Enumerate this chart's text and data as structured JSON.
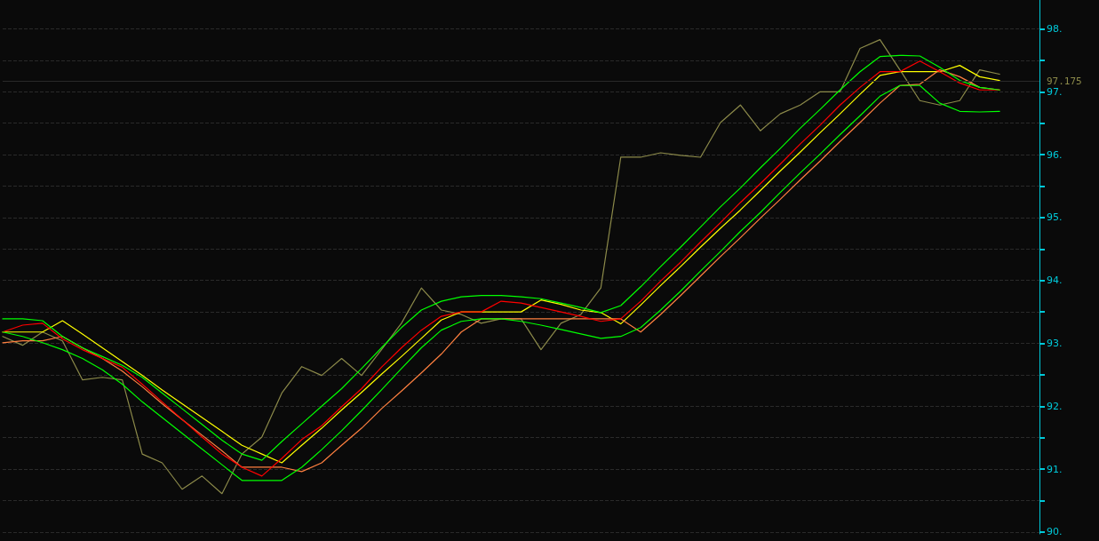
{
  "chart_data": {
    "type": "line",
    "categories": [
      null,
      null,
      null,
      null,
      null,
      null,
      null,
      null,
      null,
      null,
      null,
      null,
      null,
      null,
      null,
      null,
      null,
      null,
      null,
      null,
      null,
      null,
      null,
      null,
      null,
      null,
      null,
      null,
      null,
      null,
      null,
      null,
      null,
      null,
      null,
      null,
      null,
      null,
      null,
      null,
      null,
      null,
      null,
      null,
      null,
      null,
      null,
      null,
      null,
      null,
      null,
      null,
      null
    ],
    "series": [
      {
        "color": "#8c8a4a",
        "values": [
          93.11,
          92.97,
          93.18,
          93.04,
          92.42,
          92.46,
          92.42,
          91.24,
          91.1,
          90.68,
          90.89,
          90.61,
          91.24,
          91.51,
          92.21,
          92.63,
          92.49,
          92.76,
          92.49,
          92.9,
          93.32,
          93.88,
          93.53,
          93.46,
          93.32,
          93.39,
          93.39,
          92.9,
          93.32,
          93.46,
          93.88,
          95.96,
          95.96,
          96.03,
          95.99,
          95.96,
          96.51,
          96.79,
          96.38,
          96.65,
          96.79,
          97.0,
          97.0,
          97.69,
          97.83,
          97.35,
          96.86,
          96.79,
          96.86,
          97.35,
          97.28,
          null,
          null
        ]
      },
      {
        "color": "#ffff00",
        "values": [
          93.18,
          93.18,
          93.18,
          93.36,
          93.15,
          92.93,
          92.71,
          92.49,
          92.26,
          92.04,
          91.82,
          91.6,
          91.38,
          91.24,
          91.1,
          91.38,
          91.65,
          91.94,
          92.22,
          92.51,
          92.79,
          93.08,
          93.37,
          93.5,
          93.5,
          93.5,
          93.5,
          93.69,
          93.62,
          93.53,
          93.49,
          93.31,
          93.61,
          93.92,
          94.22,
          94.53,
          94.83,
          95.12,
          95.43,
          95.74,
          96.04,
          96.35,
          96.65,
          96.96,
          97.26,
          97.32,
          97.32,
          97.32,
          97.42,
          97.24,
          97.18,
          null,
          null
        ]
      },
      {
        "color": "#ff8040",
        "values": [
          93.01,
          93.04,
          93.04,
          93.11,
          92.93,
          92.76,
          92.56,
          92.31,
          92.04,
          91.79,
          91.54,
          91.29,
          91.03,
          91.03,
          91.03,
          90.96,
          91.1,
          91.38,
          91.65,
          91.96,
          92.24,
          92.53,
          92.83,
          93.18,
          93.39,
          93.39,
          93.39,
          93.39,
          93.39,
          93.39,
          93.39,
          93.39,
          93.18,
          93.46,
          93.76,
          94.07,
          94.38,
          94.68,
          94.99,
          95.29,
          95.6,
          95.9,
          96.21,
          96.51,
          96.82,
          97.1,
          97.12,
          97.35,
          97.24,
          97.07,
          97.03,
          null,
          null
        ]
      },
      {
        "color": "#ff0000",
        "values": [
          93.18,
          93.29,
          93.32,
          93.07,
          92.9,
          92.76,
          92.62,
          92.35,
          92.07,
          91.79,
          91.51,
          91.24,
          91.03,
          90.89,
          91.17,
          91.47,
          91.69,
          91.99,
          92.28,
          92.62,
          92.93,
          93.21,
          93.43,
          93.5,
          93.5,
          93.67,
          93.64,
          93.57,
          93.5,
          93.43,
          93.35,
          93.39,
          93.67,
          93.99,
          94.29,
          94.61,
          94.92,
          95.24,
          95.54,
          95.85,
          96.17,
          96.47,
          96.79,
          97.07,
          97.32,
          97.32,
          97.49,
          97.32,
          97.14,
          97.03,
          97.03,
          null,
          null
        ]
      },
      {
        "color": "#00ff00",
        "values": [
          93.39,
          93.39,
          93.36,
          93.11,
          92.93,
          92.79,
          92.65,
          92.46,
          92.21,
          91.96,
          91.71,
          91.46,
          91.24,
          91.14,
          91.44,
          91.72,
          92.0,
          92.28,
          92.6,
          92.93,
          93.25,
          93.53,
          93.67,
          93.74,
          93.76,
          93.76,
          93.74,
          93.71,
          93.64,
          93.57,
          93.49,
          93.6,
          93.9,
          94.22,
          94.53,
          94.85,
          95.17,
          95.47,
          95.79,
          96.1,
          96.42,
          96.72,
          97.03,
          97.32,
          97.56,
          97.58,
          97.57,
          97.39,
          97.18,
          97.07,
          97.03,
          null,
          null
        ]
      },
      {
        "color": "#00ff00",
        "values": [
          93.18,
          93.11,
          93.01,
          92.9,
          92.76,
          92.58,
          92.35,
          92.07,
          91.82,
          91.57,
          91.32,
          91.07,
          90.82,
          90.82,
          90.82,
          91.03,
          91.31,
          91.61,
          91.93,
          92.26,
          92.6,
          92.93,
          93.21,
          93.35,
          93.39,
          93.39,
          93.35,
          93.29,
          93.22,
          93.15,
          93.08,
          93.11,
          93.25,
          93.53,
          93.83,
          94.15,
          94.46,
          94.78,
          95.08,
          95.4,
          95.71,
          96.01,
          96.32,
          96.62,
          96.93,
          97.1,
          97.1,
          96.82,
          96.69,
          96.68,
          96.69,
          null,
          null
        ]
      }
    ],
    "ylim": [
      89.97,
      98.46
    ],
    "yticks": [
      {
        "value": 90,
        "label": "90."
      },
      {
        "value": 90.5,
        "label": null
      },
      {
        "value": 91,
        "label": "91."
      },
      {
        "value": 91.5,
        "label": null
      },
      {
        "value": 92,
        "label": "92."
      },
      {
        "value": 92.5,
        "label": null
      },
      {
        "value": 93,
        "label": "93."
      },
      {
        "value": 93.5,
        "label": null
      },
      {
        "value": 94,
        "label": "94."
      },
      {
        "value": 94.5,
        "label": null
      },
      {
        "value": 95,
        "label": "95."
      },
      {
        "value": 95.5,
        "label": null
      },
      {
        "value": 96,
        "label": "96."
      },
      {
        "value": 96.5,
        "label": null
      },
      {
        "value": 97,
        "label": "97."
      },
      {
        "value": 97.5,
        "label": null
      },
      {
        "value": 98,
        "label": "98."
      }
    ],
    "ref_lines": [
      {
        "axis": "y",
        "value": 97.175,
        "label": "97.175",
        "color": "#2a2a2a"
      }
    ],
    "grid": "y",
    "marker": "none",
    "line_style": "solid"
  }
}
